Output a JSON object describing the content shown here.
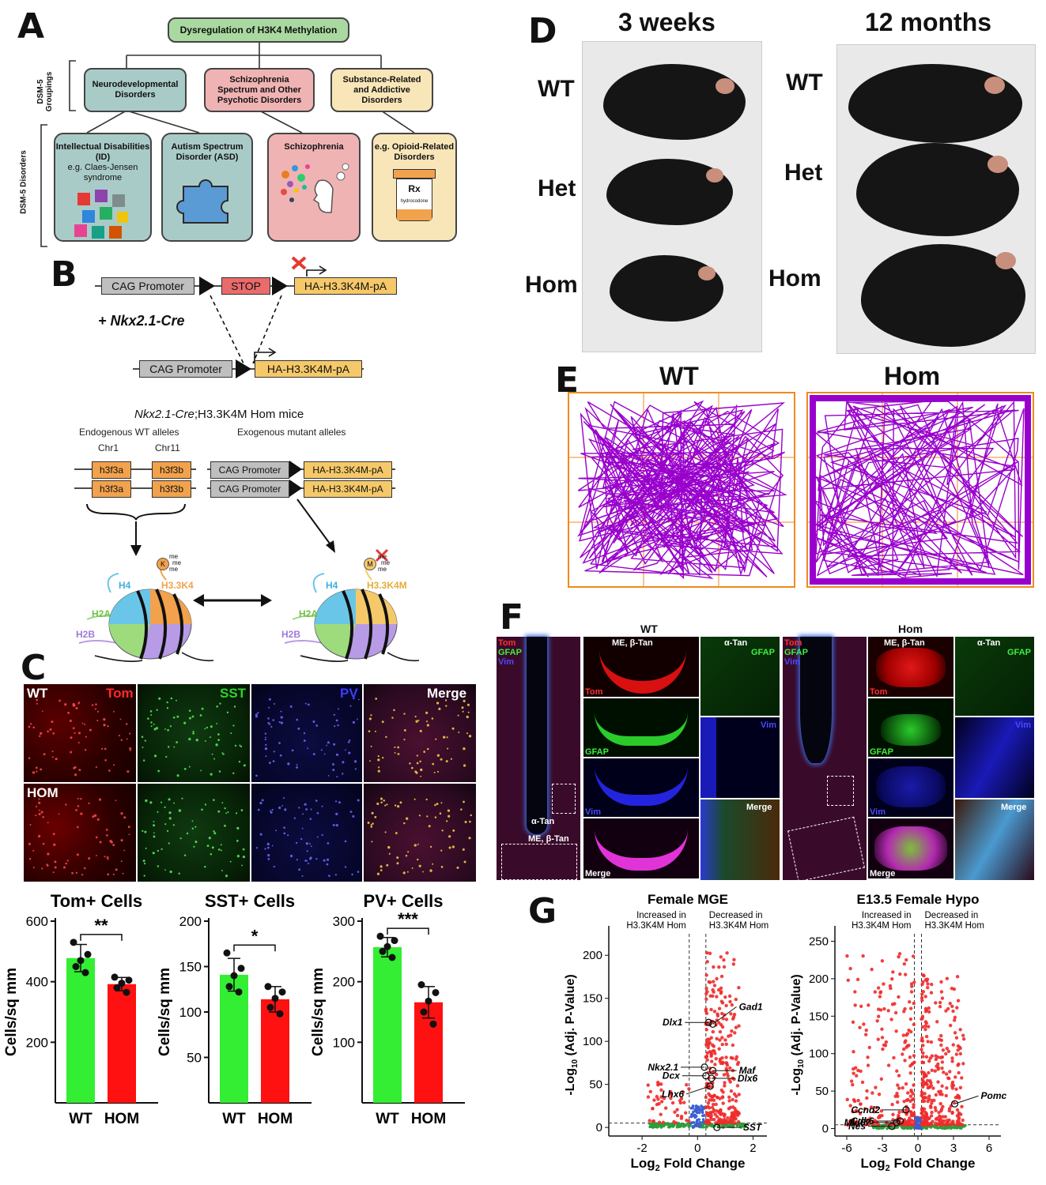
{
  "panels": {
    "a": "A",
    "b": "B",
    "c": "C",
    "d": "D",
    "e": "E",
    "f": "F",
    "g": "G"
  },
  "panelA": {
    "root": "Dysregulation of H3K4 Methylation",
    "side_groupings": "DSM-5 Groupings",
    "side_disorders": "DSM-5 Disorders",
    "groups": [
      "Neurodevelopmental Disorders",
      "Schizophrenia Spectrum and Other Psychotic Disorders",
      "Substance-Related and Addictive Disorders"
    ],
    "disorders": [
      {
        "title": "Intellectual Disabilities (ID)",
        "sub": "e.g. Claes-Jensen syndrome"
      },
      {
        "title": "Autism Spectrum Disorder (ASD)",
        "sub": ""
      },
      {
        "title": "Schizophrenia",
        "sub": ""
      },
      {
        "title": "e.g. Opioid-Related Disorders",
        "sub": ""
      }
    ],
    "rx": "Rx",
    "rx_sub": "hydrocodone",
    "colors": {
      "root": "#a9d9a0",
      "neuro": "#a9cbc8",
      "schizo": "#f0b3b4",
      "substance": "#f8e6b8",
      "puzzle": "#5b9bd5"
    }
  },
  "panelB": {
    "cag": "CAG Promoter",
    "stop": "STOP",
    "ha": "HA-H3.3K4M-pA",
    "cre": "+ Nkx2.1-Cre",
    "mice_title_italic": "Nkx2.1-Cre",
    "mice_title_rest": ";H3.3K4M Hom mice",
    "endogenous": "Endogenous WT alleles",
    "exogenous": "Exogenous mutant alleles",
    "chr1": "Chr1",
    "chr11": "Chr11",
    "gene_a": "h3f3a",
    "gene_b": "h3f3b",
    "histones": {
      "h4": "H4",
      "h2a": "H2A",
      "h2b": "H2B",
      "wt": "H3.3K4",
      "mut": "H3.3K4M",
      "k": "K",
      "m": "M",
      "me": "me"
    },
    "histone_colors": {
      "h4": "#6ac6e8",
      "h2a": "#9edb7c",
      "h2b": "#b89be6",
      "h3": "#f2a24c"
    }
  },
  "panelC": {
    "rows": [
      "WT",
      "HOM"
    ],
    "channels": [
      "Tom",
      "SST",
      "PV",
      "Merge"
    ],
    "channel_colors": [
      "#ff2a2a",
      "#2fd22f",
      "#3b3bff",
      "#ffffff"
    ],
    "ylabel": "Cells/sq mm",
    "xticks": [
      "WT",
      "HOM"
    ]
  },
  "chart_data": [
    {
      "type": "bar",
      "title": "Tom+ Cells",
      "categories": [
        "WT",
        "HOM"
      ],
      "values": [
        478,
        392
      ],
      "error": [
        45,
        22
      ],
      "points": [
        [
          530,
          490,
          470,
          450,
          430
        ],
        [
          415,
          405,
          395,
          380,
          365
        ]
      ],
      "significance": "**",
      "ylabel": "Cells/sq mm",
      "ylim": [
        0,
        600
      ],
      "yticks": [
        200,
        400,
        600
      ],
      "colors": [
        "#33ee33",
        "#ff1111"
      ]
    },
    {
      "type": "bar",
      "title": "SST+ Cells",
      "categories": [
        "WT",
        "HOM"
      ],
      "values": [
        141,
        114
      ],
      "error": [
        18,
        14
      ],
      "points": [
        [
          165,
          148,
          140,
          128,
          122
        ],
        [
          128,
          122,
          115,
          105,
          98
        ]
      ],
      "significance": "*",
      "ylabel": "Cells/sq mm",
      "ylim": [
        0,
        200
      ],
      "yticks": [
        50,
        100,
        150,
        200
      ],
      "colors": [
        "#33ee33",
        "#ff1111"
      ]
    },
    {
      "type": "bar",
      "title": "PV+ Cells",
      "categories": [
        "WT",
        "HOM"
      ],
      "values": [
        257,
        166
      ],
      "error": [
        16,
        26
      ],
      "points": [
        [
          275,
          268,
          258,
          250,
          240
        ],
        [
          195,
          182,
          168,
          150,
          130
        ]
      ],
      "significance": "***",
      "ylabel": "Cells/sq mm",
      "ylim": [
        0,
        300
      ],
      "yticks": [
        100,
        200,
        300
      ],
      "colors": [
        "#33ee33",
        "#ff1111"
      ]
    },
    {
      "type": "scatter",
      "title": "Female MGE",
      "left_note": "Increased in H3.3K4M Hom",
      "right_note": "Decreased in H3.3K4M Hom",
      "xlabel": "Log2 Fold Change",
      "ylabel": "-Log10 (Adj. P-Value)",
      "xlim": [
        -3.2,
        2.5
      ],
      "ylim": [
        -10,
        225
      ],
      "xticks": [
        -2,
        0,
        2
      ],
      "yticks": [
        0,
        50,
        100,
        150,
        200
      ],
      "labeled_genes": [
        {
          "name": "Dlx1",
          "x": 0.4,
          "y": 122
        },
        {
          "name": "Gad1",
          "x": 0.55,
          "y": 120
        },
        {
          "name": "Nkx2.1",
          "x": 0.25,
          "y": 70
        },
        {
          "name": "Dcx",
          "x": 0.3,
          "y": 60
        },
        {
          "name": "Maf",
          "x": 0.55,
          "y": 66
        },
        {
          "name": "Dlx6",
          "x": 0.5,
          "y": 57
        },
        {
          "name": "Lhx6",
          "x": 0.45,
          "y": 48
        },
        {
          "name": "SST",
          "x": 0.7,
          "y": 0
        }
      ]
    },
    {
      "type": "scatter",
      "title": "E13.5 Female Hypo",
      "left_note": "Increased in H3.3K4M Hom",
      "right_note": "Decreased in H3.3K4M Hom",
      "xlabel": "Log2 Fold Change",
      "ylabel": "-Log10 (Adj. P-Value)",
      "xlim": [
        -7,
        7
      ],
      "ylim": [
        -10,
        260
      ],
      "xticks": [
        -6,
        -3,
        0,
        3,
        6
      ],
      "yticks": [
        0,
        50,
        100,
        150,
        200,
        250
      ],
      "labeled_genes": [
        {
          "name": "Pomc",
          "x": 3.1,
          "y": 33
        },
        {
          "name": "Ccnd2",
          "x": -1.0,
          "y": 25
        },
        {
          "name": "Cdk6",
          "x": -1.5,
          "y": 10
        },
        {
          "name": "Mki67",
          "x": -1.8,
          "y": 8
        },
        {
          "name": "Nes",
          "x": -2.2,
          "y": 3
        }
      ]
    }
  ],
  "panelD": {
    "col1": "3 weeks",
    "col2": "12 months",
    "rows": [
      "WT",
      "Het",
      "Hom"
    ]
  },
  "panelE": {
    "left": "WT",
    "right": "Hom",
    "track_color": "#9900cc",
    "grid_color": "#f08a1c"
  },
  "panelF": {
    "wt": "WT",
    "hom": "Hom",
    "over_tom": "Tom",
    "over_gfap": "GFAP",
    "over_vim": "Vim",
    "me": "ME, β-Tan",
    "atan": "α-Tan",
    "tom": "Tom",
    "gfap": "GFAP",
    "vim": "Vim",
    "merge": "Merge"
  }
}
